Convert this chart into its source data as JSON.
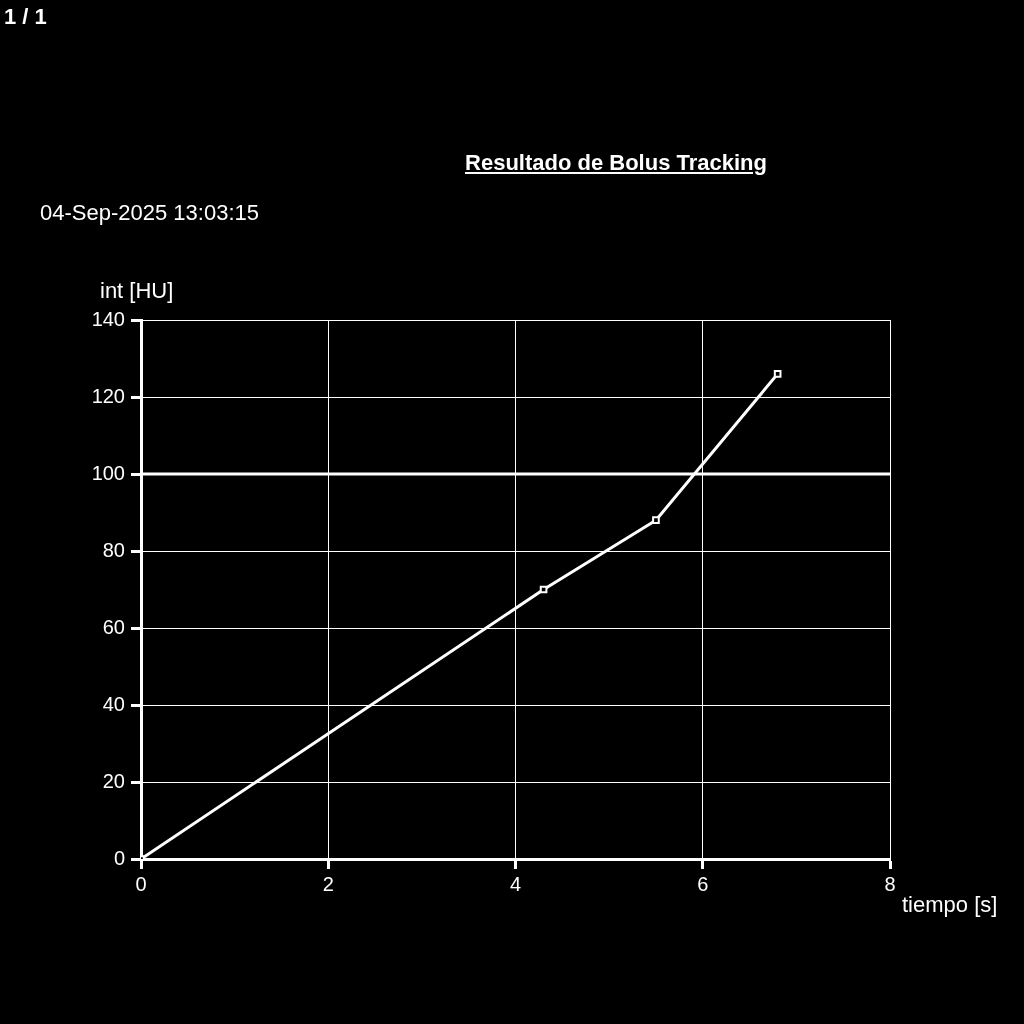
{
  "chart_data": {
    "type": "line",
    "title": "Resultado de Bolus Tracking",
    "xlabel": "tiempo [s]",
    "ylabel": "int [HU]",
    "annotations": [
      "1 / 1",
      "04-Sep-2025 13:03:15"
    ],
    "series": [
      {
        "color": "#ffffff",
        "x": [
          0,
          4.3,
          5.5,
          6.8
        ],
        "values": [
          0,
          70,
          88,
          126
        ]
      }
    ],
    "xlim": [
      0,
      8
    ],
    "xticks": [
      0,
      2,
      4,
      6,
      8
    ],
    "ylim": [
      0,
      140
    ],
    "yticks": [
      0,
      20,
      40,
      60,
      80,
      100,
      120,
      140
    ],
    "ref_lines": [
      {
        "axis": "y",
        "value": 100,
        "color": "#ffffff",
        "line_style": "solid"
      }
    ],
    "grid": true,
    "legend": false,
    "marker": "square",
    "line_style": "solid"
  }
}
